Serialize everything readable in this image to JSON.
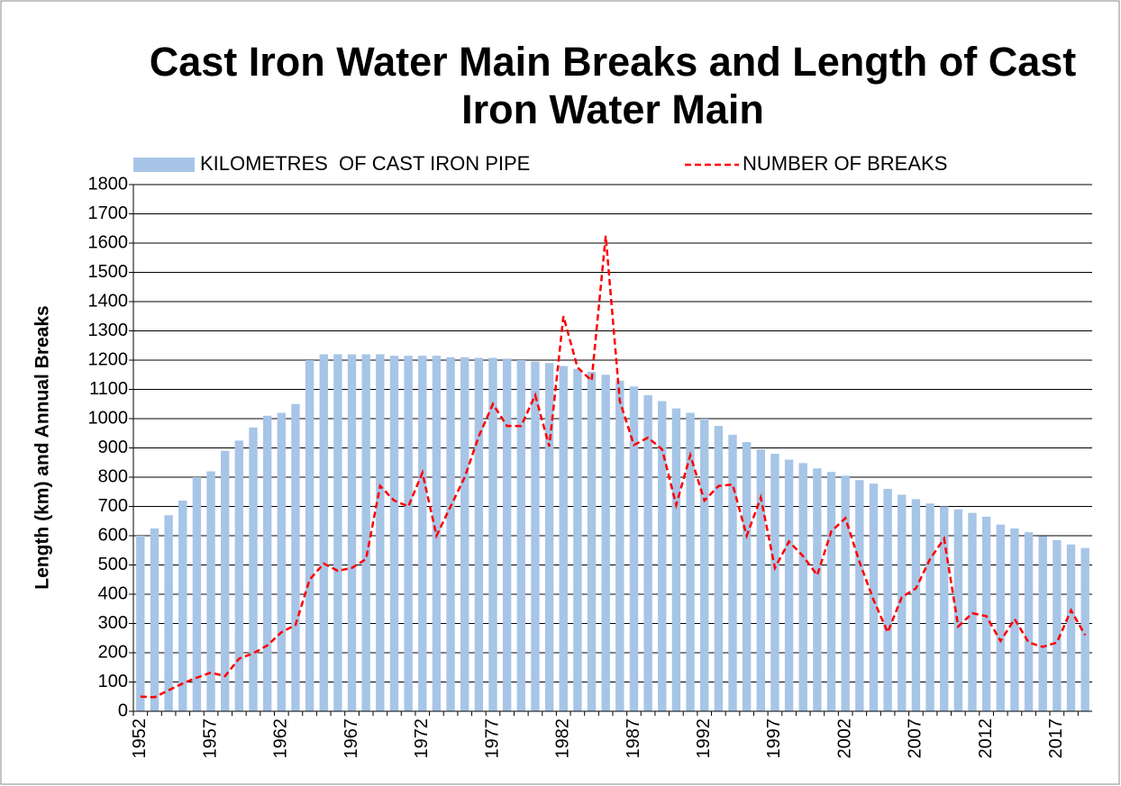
{
  "chart_data": {
    "type": "bar",
    "title": "Cast Iron Water Main Breaks and Length of Cast Iron Water Main",
    "ylabel": "Length (km) and Annual Breaks",
    "categories": [
      "1952",
      null,
      null,
      null,
      null,
      "1957",
      null,
      null,
      null,
      null,
      "1962",
      null,
      null,
      null,
      null,
      "1967",
      null,
      null,
      null,
      null,
      "1972",
      null,
      null,
      null,
      null,
      "1977",
      null,
      null,
      null,
      null,
      "1982",
      null,
      null,
      null,
      null,
      "1987",
      null,
      null,
      null,
      null,
      "1992",
      null,
      null,
      null,
      null,
      "1997",
      null,
      null,
      null,
      null,
      "2002",
      null,
      null,
      null,
      null,
      "2007",
      null,
      null,
      null,
      null,
      "2012",
      null,
      null,
      null,
      null,
      "2017",
      null,
      null
    ],
    "series": [
      {
        "name": "KILOMETRES  OF CAST IRON PIPE",
        "type": "bar",
        "color": "#a7c5e6",
        "values": [
          600,
          625,
          670,
          720,
          800,
          820,
          890,
          925,
          970,
          1010,
          1020,
          1050,
          1200,
          1220,
          1220,
          1220,
          1220,
          1220,
          1215,
          1215,
          1215,
          1215,
          1210,
          1210,
          1208,
          1208,
          1205,
          1200,
          1195,
          1190,
          1180,
          1170,
          1160,
          1150,
          1130,
          1110,
          1080,
          1060,
          1035,
          1020,
          1000,
          975,
          945,
          920,
          895,
          880,
          860,
          848,
          830,
          818,
          805,
          790,
          778,
          760,
          740,
          725,
          710,
          700,
          690,
          678,
          665,
          638,
          625,
          612,
          598,
          585,
          570,
          558
        ]
      },
      {
        "name": "NUMBER OF BREAKS",
        "type": "line",
        "color": "#ff0000",
        "dashed": true,
        "values": [
          50,
          48,
          72,
          95,
          115,
          132,
          120,
          180,
          198,
          225,
          270,
          295,
          450,
          505,
          480,
          490,
          520,
          770,
          720,
          700,
          815,
          600,
          700,
          800,
          940,
          1050,
          975,
          975,
          1080,
          905,
          1350,
          1175,
          1130,
          1625,
          1060,
          910,
          935,
          895,
          705,
          875,
          720,
          770,
          775,
          600,
          730,
          490,
          580,
          530,
          465,
          615,
          660,
          510,
          380,
          270,
          390,
          420,
          520,
          590,
          290,
          335,
          325,
          240,
          315,
          235,
          220,
          235,
          345,
          260
        ]
      }
    ],
    "ylim": [
      0,
      1800
    ],
    "yticks": [
      0,
      100,
      200,
      300,
      400,
      500,
      600,
      700,
      800,
      900,
      1000,
      1100,
      1200,
      1300,
      1400,
      1500,
      1600,
      1700,
      1800
    ],
    "grid": true,
    "legend": "top"
  }
}
